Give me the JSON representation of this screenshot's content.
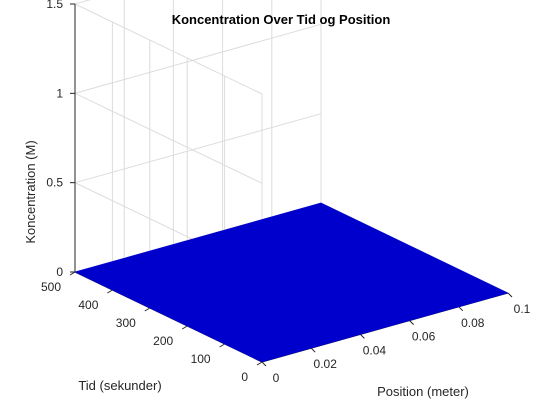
{
  "chart_data": {
    "type": "surface",
    "title": "Koncentration Over Tid og Position",
    "xlabel": "Position (meter)",
    "ylabel": "Tid (sekunder)",
    "zlabel": "Koncentration (M)",
    "xlim": [
      0,
      0.1
    ],
    "ylim": [
      0,
      500
    ],
    "zlim": [
      0,
      1.5
    ],
    "x_ticks": [
      "0",
      "0.02",
      "0.04",
      "0.06",
      "0.08",
      "0.1"
    ],
    "y_ticks": [
      "0",
      "100",
      "200",
      "300",
      "400",
      "500"
    ],
    "z_ticks": [
      "0",
      "0.5",
      "1",
      "1.5"
    ],
    "grid": true,
    "surface_color": "#0000cd",
    "surface": {
      "x": [
        0,
        0.1
      ],
      "y": [
        0,
        500
      ],
      "z": [
        [
          0,
          0
        ],
        [
          0,
          0
        ]
      ]
    }
  }
}
